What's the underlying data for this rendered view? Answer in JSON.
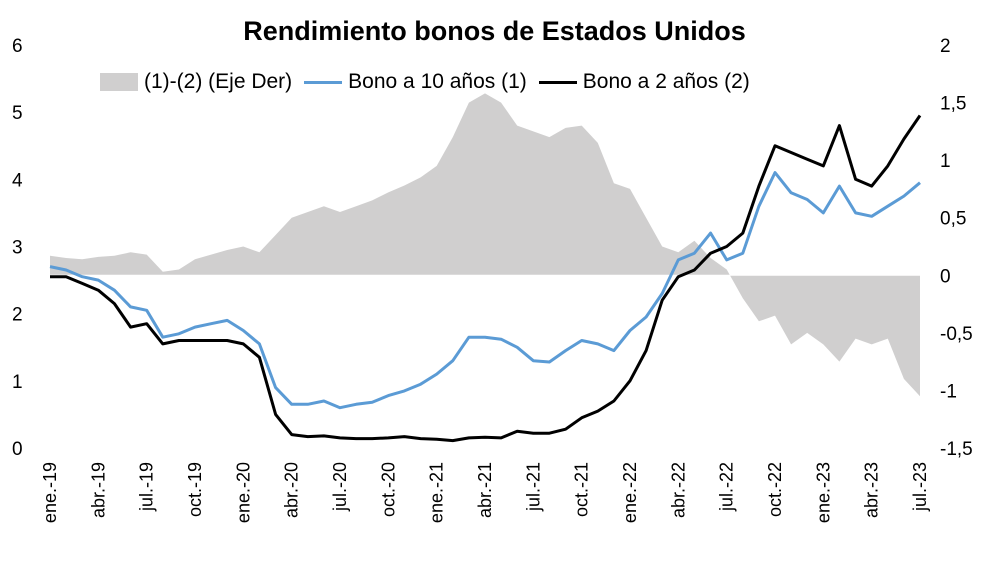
{
  "chart_data": {
    "type": "line",
    "title": "Rendimiento bonos de Estados Unidos",
    "x_tick_labels": [
      "ene.-19",
      "abr.-19",
      "jul.-19",
      "oct.-19",
      "ene.-20",
      "abr.-20",
      "jul.-20",
      "oct.-20",
      "ene.-21",
      "abr.-21",
      "jul.-21",
      "oct.-21",
      "ene.-22",
      "abr.-22",
      "jul.-22",
      "oct.-22",
      "ene.-23",
      "abr.-23",
      "jul.-23"
    ],
    "y_left": {
      "ticks": [
        "0",
        "1",
        "2",
        "3",
        "4",
        "5",
        "6"
      ],
      "ylim": [
        0,
        6
      ]
    },
    "y_right": {
      "ticks": [
        "-1,5",
        "-1",
        "-0,5",
        "0",
        "0,5",
        "1",
        "1,5",
        "2"
      ],
      "ylim": [
        -1.5,
        2
      ]
    },
    "legend_position": "top",
    "series": [
      {
        "name": "(1)-(2) (Eje Der)",
        "kind": "area",
        "axis": "right",
        "color": "#d0cfcf",
        "x": [
          "2019-01",
          "2019-02",
          "2019-03",
          "2019-04",
          "2019-05",
          "2019-06",
          "2019-07",
          "2019-08",
          "2019-09",
          "2019-10",
          "2019-11",
          "2019-12",
          "2020-01",
          "2020-02",
          "2020-03",
          "2020-04",
          "2020-05",
          "2020-06",
          "2020-07",
          "2020-08",
          "2020-09",
          "2020-10",
          "2020-11",
          "2020-12",
          "2021-01",
          "2021-02",
          "2021-03",
          "2021-04",
          "2021-05",
          "2021-06",
          "2021-07",
          "2021-08",
          "2021-09",
          "2021-10",
          "2021-11",
          "2021-12",
          "2022-01",
          "2022-02",
          "2022-03",
          "2022-04",
          "2022-05",
          "2022-06",
          "2022-07",
          "2022-08",
          "2022-09",
          "2022-10",
          "2022-11",
          "2022-12",
          "2023-01",
          "2023-02",
          "2023-03",
          "2023-04",
          "2023-05",
          "2023-06",
          "2023-07"
        ],
        "values": [
          0.17,
          0.15,
          0.14,
          0.16,
          0.17,
          0.2,
          0.18,
          0.03,
          0.05,
          0.14,
          0.18,
          0.22,
          0.25,
          0.2,
          0.35,
          0.5,
          0.55,
          0.6,
          0.55,
          0.6,
          0.65,
          0.72,
          0.78,
          0.85,
          0.95,
          1.2,
          1.5,
          1.58,
          1.5,
          1.3,
          1.25,
          1.2,
          1.28,
          1.3,
          1.15,
          0.8,
          0.75,
          0.5,
          0.25,
          0.2,
          0.3,
          0.15,
          0.05,
          -0.2,
          -0.4,
          -0.35,
          -0.6,
          -0.5,
          -0.6,
          -0.75,
          -0.55,
          -0.6,
          -0.55,
          -0.9,
          -1.05
        ]
      },
      {
        "name": "Bono a 10 años (1)",
        "kind": "line",
        "axis": "left",
        "color": "#5b9bd5",
        "x": [
          "2019-01",
          "2019-02",
          "2019-03",
          "2019-04",
          "2019-05",
          "2019-06",
          "2019-07",
          "2019-08",
          "2019-09",
          "2019-10",
          "2019-11",
          "2019-12",
          "2020-01",
          "2020-02",
          "2020-03",
          "2020-04",
          "2020-05",
          "2020-06",
          "2020-07",
          "2020-08",
          "2020-09",
          "2020-10",
          "2020-11",
          "2020-12",
          "2021-01",
          "2021-02",
          "2021-03",
          "2021-04",
          "2021-05",
          "2021-06",
          "2021-07",
          "2021-08",
          "2021-09",
          "2021-10",
          "2021-11",
          "2021-12",
          "2022-01",
          "2022-02",
          "2022-03",
          "2022-04",
          "2022-05",
          "2022-06",
          "2022-07",
          "2022-08",
          "2022-09",
          "2022-10",
          "2022-11",
          "2022-12",
          "2023-01",
          "2023-02",
          "2023-03",
          "2023-04",
          "2023-05",
          "2023-06",
          "2023-07"
        ],
        "values": [
          2.7,
          2.65,
          2.55,
          2.5,
          2.35,
          2.1,
          2.05,
          1.65,
          1.7,
          1.8,
          1.85,
          1.9,
          1.75,
          1.55,
          0.9,
          0.65,
          0.65,
          0.7,
          0.6,
          0.65,
          0.68,
          0.78,
          0.85,
          0.95,
          1.1,
          1.3,
          1.65,
          1.65,
          1.62,
          1.5,
          1.3,
          1.28,
          1.45,
          1.6,
          1.55,
          1.45,
          1.75,
          1.95,
          2.3,
          2.8,
          2.9,
          3.2,
          2.8,
          2.9,
          3.6,
          4.1,
          3.8,
          3.7,
          3.5,
          3.9,
          3.5,
          3.45,
          3.6,
          3.75,
          3.95
        ]
      },
      {
        "name": "Bono a 2 años (2)",
        "kind": "line",
        "axis": "left",
        "color": "#000000",
        "x": [
          "2019-01",
          "2019-02",
          "2019-03",
          "2019-04",
          "2019-05",
          "2019-06",
          "2019-07",
          "2019-08",
          "2019-09",
          "2019-10",
          "2019-11",
          "2019-12",
          "2020-01",
          "2020-02",
          "2020-03",
          "2020-04",
          "2020-05",
          "2020-06",
          "2020-07",
          "2020-08",
          "2020-09",
          "2020-10",
          "2020-11",
          "2020-12",
          "2021-01",
          "2021-02",
          "2021-03",
          "2021-04",
          "2021-05",
          "2021-06",
          "2021-07",
          "2021-08",
          "2021-09",
          "2021-10",
          "2021-11",
          "2021-12",
          "2022-01",
          "2022-02",
          "2022-03",
          "2022-04",
          "2022-05",
          "2022-06",
          "2022-07",
          "2022-08",
          "2022-09",
          "2022-10",
          "2022-11",
          "2022-12",
          "2023-01",
          "2023-02",
          "2023-03",
          "2023-04",
          "2023-05",
          "2023-06",
          "2023-07"
        ],
        "values": [
          2.55,
          2.55,
          2.45,
          2.35,
          2.15,
          1.8,
          1.85,
          1.55,
          1.6,
          1.6,
          1.6,
          1.6,
          1.55,
          1.35,
          0.5,
          0.2,
          0.17,
          0.18,
          0.15,
          0.14,
          0.14,
          0.15,
          0.17,
          0.14,
          0.13,
          0.11,
          0.15,
          0.16,
          0.15,
          0.25,
          0.22,
          0.22,
          0.28,
          0.45,
          0.55,
          0.7,
          1.0,
          1.45,
          2.2,
          2.55,
          2.65,
          2.9,
          3.0,
          3.2,
          3.9,
          4.5,
          4.4,
          4.3,
          4.2,
          4.8,
          4.0,
          3.9,
          4.2,
          4.6,
          4.95
        ]
      }
    ]
  }
}
